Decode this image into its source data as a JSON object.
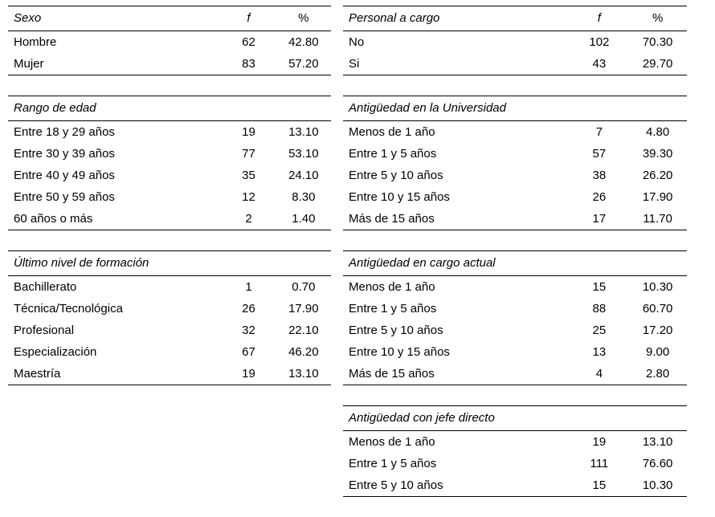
{
  "page": {
    "background_color": "#ffffff",
    "text_color": "#000000",
    "rule_color": "#000000"
  },
  "columns": {
    "freq_header": "f",
    "pct_header": "%"
  },
  "sections": [
    {
      "id": "sexo",
      "column": "left",
      "title": "Sexo",
      "show_column_headers": true,
      "rows": [
        {
          "label": "Hombre",
          "f": "62",
          "pct": "42.80"
        },
        {
          "label": "Mujer",
          "f": "83",
          "pct": "57.20"
        }
      ]
    },
    {
      "id": "personal-a-cargo",
      "column": "right",
      "title": "Personal a cargo",
      "show_column_headers": true,
      "rows": [
        {
          "label": "No",
          "f": "102",
          "pct": "70.30"
        },
        {
          "label": "Si",
          "f": "43",
          "pct": "29.70"
        }
      ]
    },
    {
      "id": "rango-de-edad",
      "column": "left",
      "title": "Rango de edad",
      "show_column_headers": false,
      "rows": [
        {
          "label": "Entre 18 y 29 años",
          "f": "19",
          "pct": "13.10"
        },
        {
          "label": "Entre 30 y 39 años",
          "f": "77",
          "pct": "53.10"
        },
        {
          "label": "Entre 40 y 49 años",
          "f": "35",
          "pct": "24.10"
        },
        {
          "label": "Entre 50 y 59 años",
          "f": "12",
          "pct": "8.30"
        },
        {
          "label": "60 años o más",
          "f": "2",
          "pct": "1.40"
        }
      ]
    },
    {
      "id": "antiguedad-universidad",
      "column": "right",
      "title": "Antigüedad en la Universidad",
      "show_column_headers": false,
      "rows": [
        {
          "label": "Menos de 1 año",
          "f": "7",
          "pct": "4.80"
        },
        {
          "label": "Entre 1 y 5 años",
          "f": "57",
          "pct": "39.30"
        },
        {
          "label": "Entre 5 y 10 años",
          "f": "38",
          "pct": "26.20"
        },
        {
          "label": "Entre 10 y 15 años",
          "f": "26",
          "pct": "17.90"
        },
        {
          "label": "Más de 15 años",
          "f": "17",
          "pct": "11.70"
        }
      ]
    },
    {
      "id": "ultimo-nivel-formacion",
      "column": "left",
      "title": "Último nivel de formación",
      "show_column_headers": false,
      "rows": [
        {
          "label": "Bachillerato",
          "f": "1",
          "pct": "0.70"
        },
        {
          "label": "Técnica/Tecnológica",
          "f": "26",
          "pct": "17.90"
        },
        {
          "label": "Profesional",
          "f": "32",
          "pct": "22.10"
        },
        {
          "label": "Especialización",
          "f": "67",
          "pct": "46.20"
        },
        {
          "label": "Maestría",
          "f": "19",
          "pct": "13.10"
        }
      ]
    },
    {
      "id": "antiguedad-cargo-actual",
      "column": "right",
      "title": "Antigüedad en cargo actual",
      "show_column_headers": false,
      "rows": [
        {
          "label": "Menos de 1 año",
          "f": "15",
          "pct": "10.30"
        },
        {
          "label": "Entre 1 y 5 años",
          "f": "88",
          "pct": "60.70"
        },
        {
          "label": "Entre 5 y 10 años",
          "f": "25",
          "pct": "17.20"
        },
        {
          "label": "Entre 10 y 15 años",
          "f": "13",
          "pct": "9.00"
        },
        {
          "label": "Más de 15 años",
          "f": "4",
          "pct": "2.80"
        }
      ]
    },
    {
      "id": "antiguedad-jefe-directo",
      "column": "right",
      "title": "Antigüedad con jefe directo",
      "show_column_headers": false,
      "rows": [
        {
          "label": "Menos de 1 año",
          "f": "19",
          "pct": "13.10"
        },
        {
          "label": "Entre 1 y 5 años",
          "f": "111",
          "pct": "76.60"
        },
        {
          "label": "Entre 5 y 10 años",
          "f": "15",
          "pct": "10.30"
        }
      ]
    }
  ]
}
